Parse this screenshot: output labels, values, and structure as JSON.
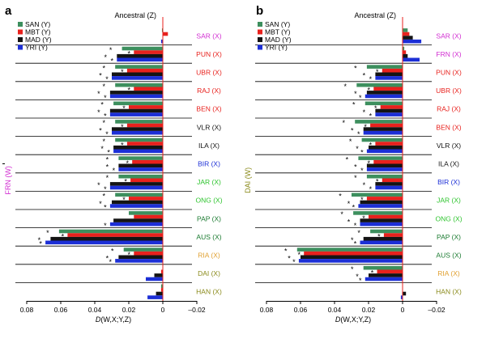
{
  "chart_data": [
    {
      "type": "bar",
      "panel_label": "a",
      "title": "Ancestral (Z)",
      "ylabel": "FRN (W)",
      "ylabel_color": "#d12bd1",
      "xlabel_prefix": "D",
      "xlabel_suffix": "(W,X;Y,Z)",
      "xlim": [
        0.08,
        -0.02
      ],
      "xticks": [
        0.08,
        0.06,
        0.04,
        0.02,
        0,
        -0.02
      ],
      "xtick_labels": [
        "0.08",
        "0.06",
        "0.04",
        "0.02",
        "0",
        "–0.02"
      ],
      "legend_placement": "top-left",
      "series": [
        {
          "name": "SAN (Y)",
          "color": "#3d8f5e"
        },
        {
          "name": "MBT (Y)",
          "color": "#e8211d"
        },
        {
          "name": "MAD (Y)",
          "color": "#141414"
        },
        {
          "name": "YRI (Y)",
          "color": "#1c2fd6"
        }
      ],
      "categories": [
        {
          "label": "SAR (X)",
          "color": "#d12bd1",
          "values": [
            0.0005,
            -0.003,
            0,
            0.001
          ],
          "stars": [
            false,
            false,
            false,
            false
          ],
          "row_label_mark": false
        },
        {
          "label": "PUN (X)",
          "color": "#e8211d",
          "values": [
            0.024,
            0.017,
            0.027,
            0.027
          ],
          "stars": [
            true,
            true,
            true,
            true
          ],
          "row_label_mark": false
        },
        {
          "label": "UBR (X)",
          "color": "#e8211d",
          "values": [
            0.028,
            0.021,
            0.03,
            0.03
          ],
          "stars": [
            true,
            true,
            true,
            true
          ],
          "row_label_mark": false
        },
        {
          "label": "RAJ (X)",
          "color": "#e8211d",
          "values": [
            0.028,
            0.017,
            0.031,
            0.031
          ],
          "stars": [
            true,
            true,
            true,
            true
          ],
          "row_label_mark": false
        },
        {
          "label": "BEN (X)",
          "color": "#e8211d",
          "values": [
            0.029,
            0.02,
            0.031,
            0.031
          ],
          "stars": [
            true,
            true,
            true,
            true
          ],
          "row_label_mark": false
        },
        {
          "label": "VLR (X)",
          "color": "#141414",
          "values": [
            0.028,
            0.021,
            0.03,
            0.03
          ],
          "stars": [
            true,
            true,
            true,
            true
          ],
          "row_label_mark": false
        },
        {
          "label": "ILA (X)",
          "color": "#141414",
          "values": [
            0.028,
            0.021,
            0.029,
            0.029
          ],
          "stars": [
            true,
            true,
            true,
            true
          ],
          "row_label_mark": false
        },
        {
          "label": "BIR (X)",
          "color": "#1c2fd6",
          "values": [
            0.026,
            0.018,
            0.026,
            0.026
          ],
          "stars": [
            true,
            true,
            true,
            true
          ],
          "row_label_mark": true
        },
        {
          "label": "JAR (X)",
          "color": "#2dc42d",
          "values": [
            0.026,
            0.019,
            0.031,
            0.031
          ],
          "stars": [
            true,
            true,
            true,
            true
          ],
          "row_label_mark": false
        },
        {
          "label": "ONG (X)",
          "color": "#2dc42d",
          "values": [
            0.028,
            0.02,
            0.03,
            0.031
          ],
          "stars": [
            true,
            true,
            true,
            true
          ],
          "row_label_mark": false
        },
        {
          "label": "PAP (X)",
          "color": "#1a7a30",
          "values": [
            0.02,
            0.017,
            0.029,
            0.031
          ],
          "stars": [
            false,
            false,
            false,
            true
          ],
          "row_label_mark": false
        },
        {
          "label": "AUS (X)",
          "color": "#1a7a30",
          "values": [
            0.061,
            0.056,
            0.066,
            0.069
          ],
          "stars": [
            true,
            true,
            true,
            true
          ],
          "row_label_mark": false
        },
        {
          "label": "RIA (X)",
          "color": "#e0a030",
          "values": [
            0.023,
            0.017,
            0.026,
            0.028
          ],
          "stars": [
            true,
            true,
            true,
            true
          ],
          "row_label_mark": false
        },
        {
          "label": "DAI (X)",
          "color": "#8a8a1a",
          "values": [
            0,
            0.001,
            0.005,
            0.01
          ],
          "stars": [
            false,
            false,
            false,
            false
          ],
          "row_label_mark": false
        },
        {
          "label": "HAN (X)",
          "color": "#8a8a1a",
          "values": [
            0.001,
            0.001,
            0.004,
            0.009
          ],
          "stars": [
            false,
            false,
            false,
            false
          ],
          "row_label_mark": false
        }
      ]
    },
    {
      "type": "bar",
      "panel_label": "b",
      "title": "Ancestral (Z)",
      "ylabel": "DAI (W)",
      "ylabel_color": "#8a8a1a",
      "xlabel_prefix": "D",
      "xlabel_suffix": "(W,X;Y,Z)",
      "xlim": [
        0.08,
        -0.02
      ],
      "xticks": [
        0.08,
        0.06,
        0.04,
        0.02,
        0,
        -0.02
      ],
      "xtick_labels": [
        "0.08",
        "0.06",
        "0.04",
        "0.02",
        "0",
        "–0.02"
      ],
      "legend_placement": "top-left",
      "series": [
        {
          "name": "SAN (Y)",
          "color": "#3d8f5e"
        },
        {
          "name": "MBT (Y)",
          "color": "#e8211d"
        },
        {
          "name": "MAD (Y)",
          "color": "#141414"
        },
        {
          "name": "YRI (Y)",
          "color": "#1c2fd6"
        }
      ],
      "categories": [
        {
          "label": "SAR (X)",
          "color": "#d12bd1",
          "values": [
            -0.003,
            -0.004,
            -0.006,
            -0.011
          ],
          "stars": [
            false,
            false,
            false,
            false
          ],
          "row_label_mark": false
        },
        {
          "label": "FRN (X)",
          "color": "#d12bd1",
          "values": [
            -0.001,
            -0.002,
            -0.003,
            -0.01
          ],
          "stars": [
            false,
            false,
            false,
            false
          ],
          "row_label_mark": false
        },
        {
          "label": "PUN (X)",
          "color": "#e8211d",
          "values": [
            0.021,
            0.012,
            0.016,
            0.016
          ],
          "stars": [
            true,
            true,
            true,
            true
          ],
          "row_label_mark": false
        },
        {
          "label": "UBR (X)",
          "color": "#e8211d",
          "values": [
            0.027,
            0.017,
            0.021,
            0.022
          ],
          "stars": [
            true,
            true,
            true,
            true
          ],
          "row_label_mark": false
        },
        {
          "label": "RAJ (X)",
          "color": "#e8211d",
          "values": [
            0.022,
            0.013,
            0.016,
            0.016
          ],
          "stars": [
            true,
            true,
            true,
            true
          ],
          "row_label_mark": false
        },
        {
          "label": "BEN (X)",
          "color": "#e8211d",
          "values": [
            0.028,
            0.019,
            0.023,
            0.023
          ],
          "stars": [
            true,
            true,
            true,
            true
          ],
          "row_label_mark": false
        },
        {
          "label": "VLR (X)",
          "color": "#141414",
          "values": [
            0.024,
            0.016,
            0.02,
            0.021
          ],
          "stars": [
            true,
            true,
            true,
            true
          ],
          "row_label_mark": false
        },
        {
          "label": "ILA (X)",
          "color": "#141414",
          "values": [
            0.026,
            0.017,
            0.021,
            0.021
          ],
          "stars": [
            true,
            true,
            true,
            true
          ],
          "row_label_mark": false
        },
        {
          "label": "BIR (X)",
          "color": "#1c2fd6",
          "values": [
            0.021,
            0.012,
            0.016,
            0.016
          ],
          "stars": [
            true,
            true,
            true,
            true
          ],
          "row_label_mark": false
        },
        {
          "label": "JAR (X)",
          "color": "#2dc42d",
          "values": [
            0.03,
            0.021,
            0.025,
            0.026
          ],
          "stars": [
            true,
            true,
            true,
            true
          ],
          "row_label_mark": false
        },
        {
          "label": "ONG (X)",
          "color": "#2dc42d",
          "values": [
            0.029,
            0.02,
            0.025,
            0.025
          ],
          "stars": [
            true,
            true,
            true,
            true
          ],
          "row_label_mark": false
        },
        {
          "label": "PAP (X)",
          "color": "#1a7a30",
          "values": [
            0.019,
            0.011,
            0.023,
            0.025
          ],
          "stars": [
            true,
            true,
            true,
            true
          ],
          "row_label_mark": false
        },
        {
          "label": "AUS (X)",
          "color": "#1a7a30",
          "values": [
            0.062,
            0.058,
            0.06,
            0.061
          ],
          "stars": [
            true,
            true,
            true,
            true
          ],
          "row_label_mark": false
        },
        {
          "label": "RIA (X)",
          "color": "#e0a030",
          "values": [
            0.023,
            0.015,
            0.02,
            0.022
          ],
          "stars": [
            true,
            true,
            true,
            true
          ],
          "row_label_mark": false
        },
        {
          "label": "HAN (X)",
          "color": "#8a8a1a",
          "values": [
            0,
            0,
            -0.002,
            0.001
          ],
          "stars": [
            false,
            false,
            false,
            false
          ],
          "row_label_mark": false
        }
      ]
    }
  ]
}
